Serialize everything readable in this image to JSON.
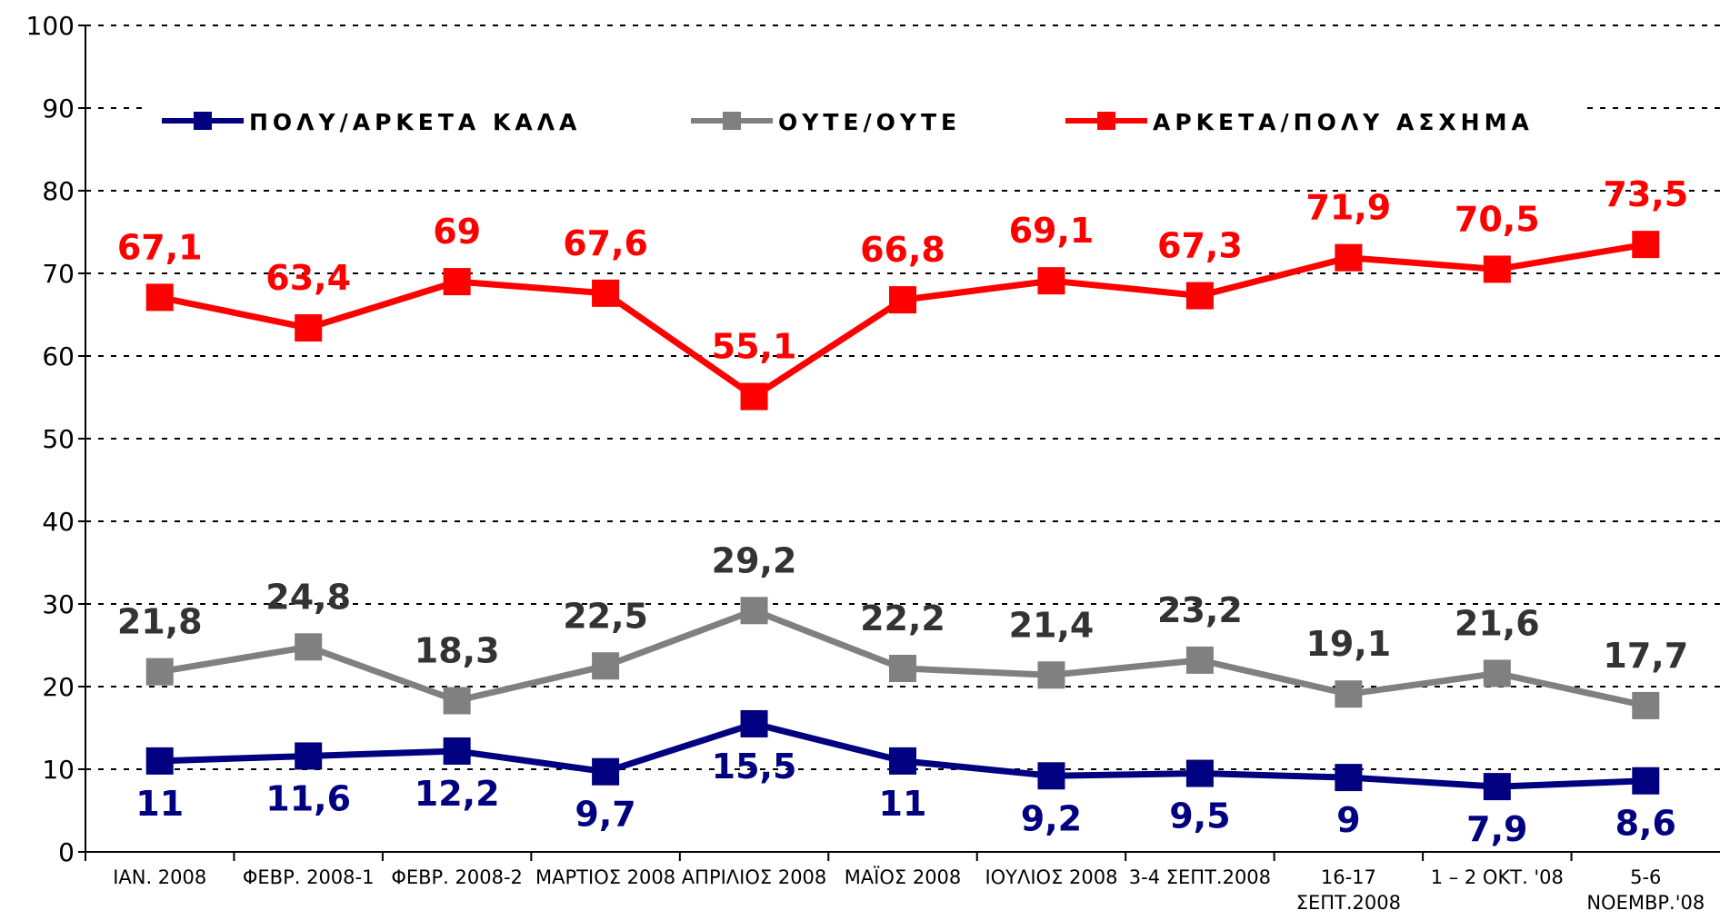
{
  "chart_data": {
    "type": "line",
    "categories": [
      "ΙΑΝ. 2008",
      "ΦΕΒΡ. 2008-1",
      "ΦΕΒΡ. 2008-2",
      "ΜΑΡΤΙΟΣ 2008",
      "ΑΠΡΙΛΙΟΣ 2008",
      "ΜΑΪΟΣ 2008",
      "ΙΟΥΛΙΟΣ 2008",
      "3-4 ΣΕΠΤ.2008",
      "16-17 ΣΕΠΤ.2008",
      "1 – 2 ΟΚΤ. '08",
      "5-6 ΝΟΕΜΒΡ.'08"
    ],
    "series": [
      {
        "name": "ΠΟΛΥ/ΑΡΚΕΤΑ ΚΑΛΑ",
        "color": "#000080",
        "values": [
          11,
          11.6,
          12.2,
          9.7,
          15.5,
          11,
          9.2,
          9.5,
          9,
          7.9,
          8.6
        ],
        "value_labels": [
          "11",
          "11,6",
          "12,2",
          "9,7",
          "15,5",
          "11",
          "9,2",
          "9,5",
          "9",
          "7,9",
          "8,6"
        ]
      },
      {
        "name": "ΟΥΤΕ/ΟΥΤΕ",
        "color": "#808080",
        "values": [
          21.8,
          24.8,
          18.3,
          22.5,
          29.2,
          22.2,
          21.4,
          23.2,
          19.1,
          21.6,
          17.7
        ],
        "value_labels": [
          "21,8",
          "24,8",
          "18,3",
          "22,5",
          "29,2",
          "22,2",
          "21,4",
          "23,2",
          "19,1",
          "21,6",
          "17,7"
        ]
      },
      {
        "name": "ΑΡΚΕΤΑ/ΠΟΛΥ ΑΣΧΗΜΑ",
        "color": "#ff0000",
        "values": [
          67.1,
          63.4,
          69,
          67.6,
          55.1,
          66.8,
          69.1,
          67.3,
          71.9,
          70.5,
          73.5
        ],
        "value_labels": [
          "67,1",
          "63,4",
          "69",
          "67,6",
          "55,1",
          "66,8",
          "69,1",
          "67,3",
          "71,9",
          "70,5",
          "73,5"
        ]
      }
    ],
    "ylim": [
      0,
      100
    ],
    "yticks": [
      0,
      10,
      20,
      30,
      40,
      50,
      60,
      70,
      80,
      90,
      100
    ],
    "grid": true
  }
}
